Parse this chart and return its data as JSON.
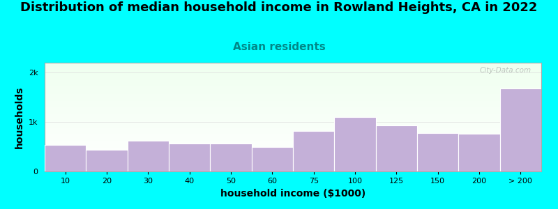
{
  "title": "Distribution of median household income in Rowland Heights, CA in 2022",
  "subtitle": "Asian residents",
  "xlabel": "household income ($1000)",
  "ylabel": "households",
  "background_color": "#00FFFF",
  "plot_bg_top": "#efffef",
  "plot_bg_bottom": "#ffffff",
  "bar_color": "#C4B0D8",
  "bar_edge_color": "#ffffff",
  "categories": [
    "10",
    "20",
    "30",
    "40",
    "50",
    "60",
    "75",
    "100",
    "125",
    "150",
    "200",
    "> 200"
  ],
  "values": [
    530,
    440,
    620,
    570,
    570,
    490,
    820,
    1100,
    930,
    770,
    760,
    1680
  ],
  "yticks": [
    0,
    1000,
    2000
  ],
  "ytick_labels": [
    "0",
    "1k",
    "2k"
  ],
  "ylim": [
    0,
    2200
  ],
  "title_fontsize": 13,
  "subtitle_fontsize": 11,
  "axis_label_fontsize": 10,
  "tick_fontsize": 8,
  "watermark": "City-Data.com"
}
